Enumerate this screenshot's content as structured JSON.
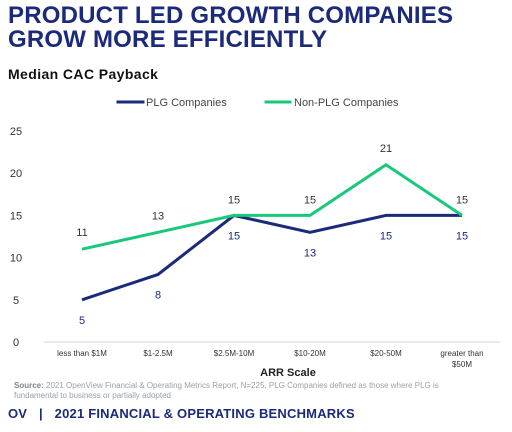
{
  "header": {
    "title_line1": "PRODUCT LED GROWTH COMPANIES",
    "title_line2": "GROW MORE EFFICIENTLY",
    "subtitle": "Median CAC Payback"
  },
  "colors": {
    "title": "#1b2a7a",
    "plg": "#1b2a7a",
    "non_plg": "#18c97b",
    "axis_text": "#333333",
    "footer": "#1b2a7a"
  },
  "chart_data": {
    "type": "line",
    "title": "",
    "xlabel": "ARR Scale",
    "ylabel": "",
    "ylim": [
      0,
      25
    ],
    "yticks": [
      0,
      5,
      10,
      15,
      20,
      25
    ],
    "categories": [
      "less than $1M",
      "$1-2.5M",
      "$2.5M-10M",
      "$10-20M",
      "$20-50M",
      "greater than $50M"
    ],
    "category_display": [
      [
        "less than $1M"
      ],
      [
        "$1-2.5M"
      ],
      [
        "$2.5M-10M"
      ],
      [
        "$10-20M"
      ],
      [
        "$20-50M"
      ],
      [
        "greater than",
        "$50M"
      ]
    ],
    "series": [
      {
        "name": "PLG Companies",
        "color": "#1b2a7a",
        "values": [
          5,
          8,
          15,
          13,
          15,
          15
        ]
      },
      {
        "name": "Non-PLG Companies",
        "color": "#18c97b",
        "values": [
          11,
          13,
          15,
          15,
          21,
          15
        ]
      }
    ],
    "legend_position": "top",
    "grid": false
  },
  "source": {
    "label": "Source:",
    "text": "2021 OpenView Financial & Operating Metrics Report, N=225, PLG Companies defined as those where PLG is fundamental to business or partially adopted"
  },
  "footer": {
    "brand": "OV",
    "separator": "|",
    "text": "2021 FINANCIAL & OPERATING BENCHMARKS"
  }
}
